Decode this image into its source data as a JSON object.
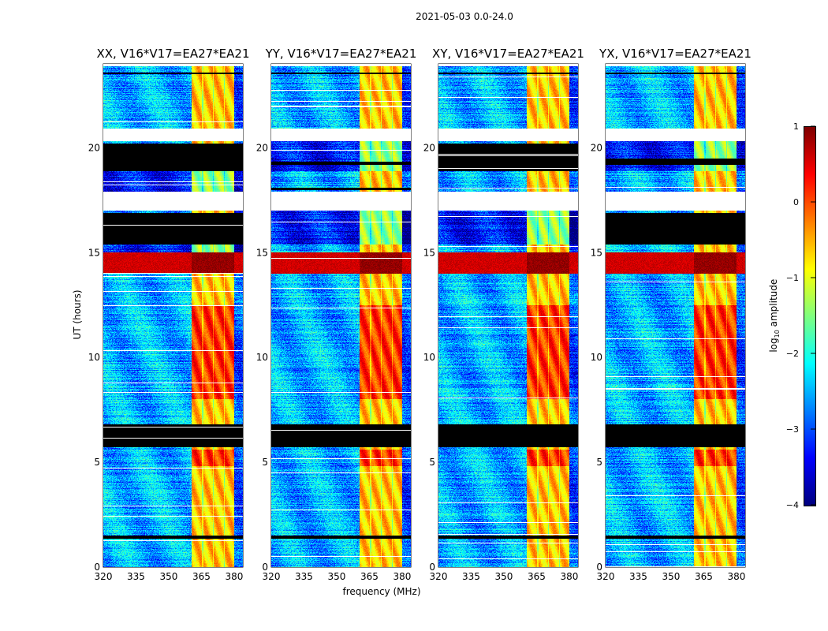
{
  "chart_data": {
    "type": "heatmap",
    "title": "2021-05-03 0.0-24.0",
    "xlabel": "frequency (MHz)",
    "ylabel": "UT (hours)",
    "xlim": [
      320,
      384
    ],
    "ylim": [
      0,
      24
    ],
    "xticks": [
      320,
      335,
      350,
      365,
      380
    ],
    "yticks": [
      0,
      5,
      10,
      15,
      20
    ],
    "colorbar": {
      "label_main": "log",
      "label_sub": "10",
      "label_tail": " amplitude",
      "range": [
        -4,
        1
      ],
      "ticks": [
        1,
        0,
        -1,
        -2,
        -3,
        -4
      ],
      "colormap": "jet"
    },
    "panels": [
      {
        "title": "XX, V16*V17=EA27*EA21",
        "pol": "XX",
        "black": [
          [
            15.4,
            16.9
          ],
          [
            18.9,
            20.2
          ],
          [
            5.7,
            6.8
          ],
          [
            1.35,
            1.5
          ],
          [
            23.5,
            23.6
          ]
        ],
        "white": [
          [
            17.0,
            17.9
          ],
          [
            20.3,
            20.9
          ],
          [
            23.9,
            24.0
          ]
        ],
        "quiet_hours": [
          [
            17.9,
            18.9
          ],
          [
            15.0,
            15.4
          ]
        ]
      },
      {
        "title": "YY, V16*V17=EA27*EA21",
        "pol": "YY",
        "black": [
          [
            5.7,
            6.8
          ],
          [
            1.35,
            1.5
          ],
          [
            23.5,
            23.6
          ],
          [
            19.2,
            19.35
          ],
          [
            18.0,
            18.1
          ]
        ],
        "white": [
          [
            17.0,
            17.9
          ],
          [
            20.3,
            20.9
          ],
          [
            23.9,
            24.0
          ]
        ],
        "quiet_hours": [
          [
            15.4,
            17.0
          ],
          [
            18.9,
            20.3
          ]
        ]
      },
      {
        "title": "XY, V16*V17=EA27*EA21",
        "pol": "XY",
        "black": [
          [
            18.9,
            20.2
          ],
          [
            5.7,
            6.8
          ],
          [
            1.35,
            1.5
          ],
          [
            23.5,
            23.6
          ]
        ],
        "white": [
          [
            17.0,
            17.9
          ],
          [
            20.3,
            20.9
          ],
          [
            23.9,
            24.0
          ]
        ],
        "quiet_hours": [
          [
            15.4,
            17.0
          ]
        ]
      },
      {
        "title": "YX, V16*V17=EA27*EA21",
        "pol": "YX",
        "black": [
          [
            15.4,
            16.9
          ],
          [
            19.2,
            19.5
          ],
          [
            5.7,
            6.8
          ],
          [
            1.35,
            1.5
          ],
          [
            23.5,
            23.6
          ]
        ],
        "white": [
          [
            17.0,
            17.9
          ],
          [
            20.3,
            20.9
          ],
          [
            23.9,
            24.0
          ]
        ],
        "quiet_hours": [
          [
            18.9,
            20.3
          ]
        ]
      }
    ],
    "features": {
      "base_level": -2.5,
      "rfi_band_mhz": [
        360.5,
        380
      ],
      "rfi_subband_edges_mhz": [
        365.5,
        370.5,
        375.5
      ],
      "rfi_level": -0.6,
      "rfi_strong_hours": [
        [
          8.0,
          12.5
        ],
        [
          4.8,
          5.6
        ]
      ],
      "broadband_burst_hours": [
        14.0,
        15.0
      ],
      "burst_level": 0.6
    }
  }
}
